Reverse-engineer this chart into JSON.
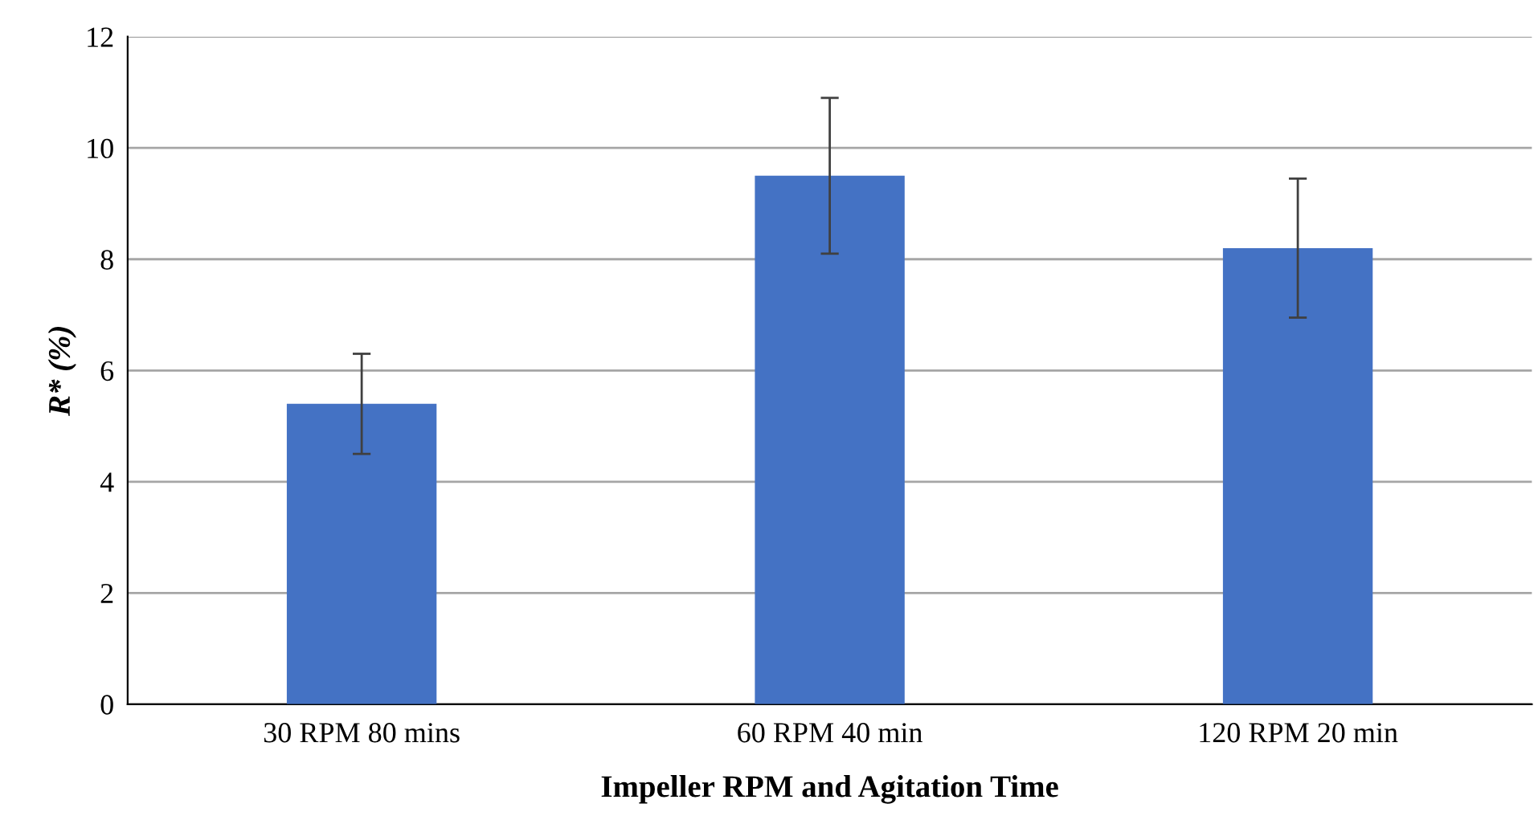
{
  "chart_data": {
    "type": "bar",
    "xlabel": "Impeller RPM and Agitation Time",
    "ylabel": "R* (%)",
    "categories": [
      "30 RPM 80 mins",
      "60 RPM 40 min",
      "120 RPM 20 min"
    ],
    "values": [
      5.4,
      9.5,
      8.2
    ],
    "errors": [
      0.9,
      1.4,
      1.25
    ],
    "color": "#4472c4",
    "ylim": [
      0,
      12
    ],
    "yticks": [
      0,
      2,
      4,
      6,
      8,
      10,
      12
    ],
    "grid": "y",
    "legend": false
  }
}
